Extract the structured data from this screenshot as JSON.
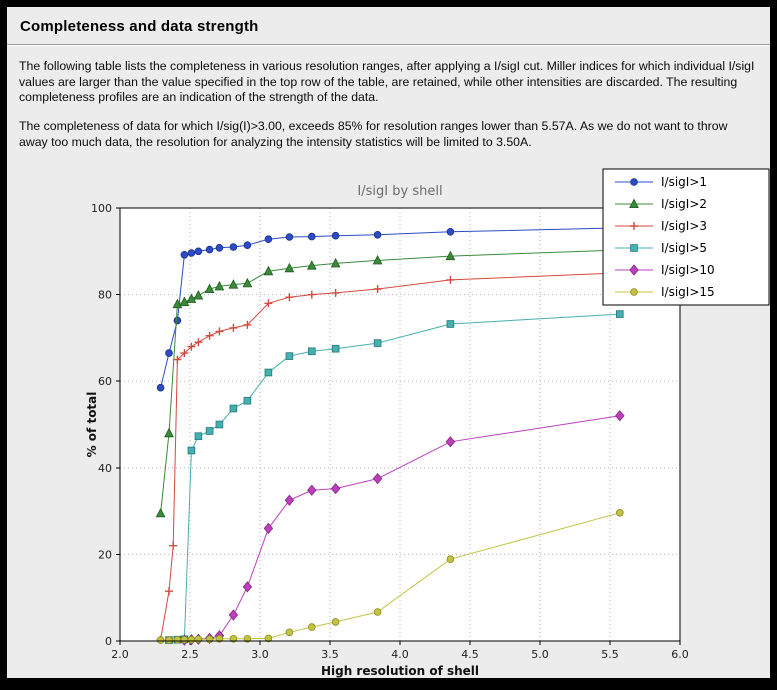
{
  "page": {
    "title": "Completeness and data strength",
    "paragraph1": "The following table lists the completeness in various resolution ranges, after applying a I/sigI cut. Miller indices for which individual I/sigI values are larger than the value specified in the top row of the table, are retained, while other intensities are discarded. The resulting completeness profiles are an indication of the strength of the data.",
    "paragraph2": "The completeness of data for which I/sig(I)>3.00, exceeds  85% for resolution ranges lower than 5.57A. As we do not want to throw away too much data, the resolution for analyzing the intensity statistics will be limited to 3.50A."
  },
  "colors": {
    "page_background": "#ececec",
    "plot_background": "#ffffff",
    "grid": "#b8b8b8",
    "frame": "#000000",
    "title_text": "#6b6b6b"
  },
  "chart_data": {
    "type": "line",
    "title": "I/sigI by shell",
    "xlabel": "High resolution of shell",
    "ylabel": "% of total",
    "xlim": [
      2.0,
      6.0
    ],
    "ylim": [
      0,
      100
    ],
    "x_ticks": [
      2.0,
      2.5,
      3.0,
      3.5,
      4.0,
      4.5,
      5.0,
      5.5,
      6.0
    ],
    "y_ticks": [
      0,
      20,
      40,
      60,
      80,
      100
    ],
    "grid": true,
    "legend_position": "top-right",
    "series": [
      {
        "name": "I/sigI>1",
        "color": "#2c4cc4",
        "edge": "#1b2f8e",
        "marker": "circle",
        "points": [
          [
            2.29,
            58.5
          ],
          [
            2.35,
            66.5
          ],
          [
            2.41,
            74.0
          ],
          [
            2.46,
            89.2
          ],
          [
            2.51,
            89.6
          ],
          [
            2.56,
            90.0
          ],
          [
            2.64,
            90.4
          ],
          [
            2.71,
            90.8
          ],
          [
            2.81,
            91.0
          ],
          [
            2.91,
            91.4
          ],
          [
            3.06,
            92.8
          ],
          [
            3.21,
            93.3
          ],
          [
            3.37,
            93.4
          ],
          [
            3.54,
            93.6
          ],
          [
            3.84,
            93.8
          ],
          [
            4.36,
            94.5
          ],
          [
            5.57,
            95.4
          ]
        ]
      },
      {
        "name": "I/sigI>2",
        "color": "#3b8a3b",
        "edge": "#1f5c1f",
        "marker": "triangle",
        "points": [
          [
            2.29,
            29.5
          ],
          [
            2.35,
            48.0
          ],
          [
            2.41,
            77.8
          ],
          [
            2.46,
            78.3
          ],
          [
            2.51,
            79.0
          ],
          [
            2.56,
            79.8
          ],
          [
            2.64,
            81.3
          ],
          [
            2.71,
            81.9
          ],
          [
            2.81,
            82.3
          ],
          [
            2.91,
            82.6
          ],
          [
            3.06,
            85.4
          ],
          [
            3.21,
            86.1
          ],
          [
            3.37,
            86.7
          ],
          [
            3.54,
            87.2
          ],
          [
            3.84,
            87.9
          ],
          [
            4.36,
            88.9
          ],
          [
            5.57,
            90.3
          ]
        ]
      },
      {
        "name": "I/sigI>3",
        "color": "#d4493f",
        "edge": "#a02820",
        "marker": "plus",
        "points": [
          [
            2.29,
            0.3
          ],
          [
            2.35,
            11.5
          ],
          [
            2.38,
            22.0
          ],
          [
            2.41,
            65.0
          ],
          [
            2.46,
            66.5
          ],
          [
            2.51,
            68.0
          ],
          [
            2.56,
            69.0
          ],
          [
            2.64,
            70.5
          ],
          [
            2.71,
            71.5
          ],
          [
            2.81,
            72.3
          ],
          [
            2.91,
            73.0
          ],
          [
            3.06,
            78.0
          ],
          [
            3.21,
            79.4
          ],
          [
            3.37,
            80.0
          ],
          [
            3.54,
            80.4
          ],
          [
            3.84,
            81.3
          ],
          [
            4.36,
            83.4
          ],
          [
            5.57,
            85.0
          ]
        ]
      },
      {
        "name": "I/sigI>5",
        "color": "#46b0b0",
        "edge": "#1f7a7a",
        "marker": "square",
        "points": [
          [
            2.35,
            0.2
          ],
          [
            2.41,
            0.3
          ],
          [
            2.46,
            0.4
          ],
          [
            2.51,
            44.0
          ],
          [
            2.56,
            47.3
          ],
          [
            2.64,
            48.5
          ],
          [
            2.71,
            50.0
          ],
          [
            2.81,
            53.7
          ],
          [
            2.91,
            55.5
          ],
          [
            3.06,
            62.0
          ],
          [
            3.21,
            65.8
          ],
          [
            3.37,
            66.9
          ],
          [
            3.54,
            67.5
          ],
          [
            3.84,
            68.8
          ],
          [
            4.36,
            73.2
          ],
          [
            5.57,
            75.5
          ]
        ]
      },
      {
        "name": "I/sigI>10",
        "color": "#bd3fbd",
        "edge": "#7e2a7e",
        "marker": "diamond",
        "points": [
          [
            2.46,
            0.2
          ],
          [
            2.51,
            0.3
          ],
          [
            2.56,
            0.4
          ],
          [
            2.64,
            0.6
          ],
          [
            2.71,
            1.2
          ],
          [
            2.81,
            6.0
          ],
          [
            2.91,
            12.5
          ],
          [
            3.06,
            26.0
          ],
          [
            3.21,
            32.5
          ],
          [
            3.37,
            34.8
          ],
          [
            3.54,
            35.2
          ],
          [
            3.84,
            37.5
          ],
          [
            4.36,
            46.0
          ],
          [
            5.57,
            52.0
          ]
        ]
      },
      {
        "name": "I/sigI>15",
        "color": "#c3c342",
        "edge": "#8a8a20",
        "marker": "circle",
        "points": [
          [
            2.29,
            0.2
          ],
          [
            2.35,
            0.2
          ],
          [
            2.41,
            0.3
          ],
          [
            2.46,
            0.3
          ],
          [
            2.51,
            0.3
          ],
          [
            2.56,
            0.4
          ],
          [
            2.64,
            0.4
          ],
          [
            2.71,
            0.5
          ],
          [
            2.81,
            0.5
          ],
          [
            2.91,
            0.5
          ],
          [
            3.06,
            0.6
          ],
          [
            3.21,
            2.0
          ],
          [
            3.37,
            3.2
          ],
          [
            3.54,
            4.4
          ],
          [
            3.84,
            6.7
          ],
          [
            4.36,
            18.9
          ],
          [
            5.57,
            29.6
          ]
        ]
      }
    ]
  }
}
